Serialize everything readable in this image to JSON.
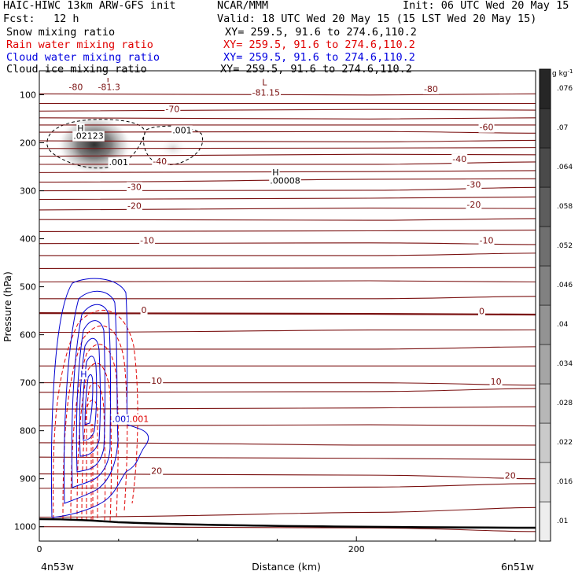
{
  "header": {
    "model": "HAIC-HIWC 13km ARW-GFS init",
    "org": "NCAR/MMM",
    "init": "Init: 06 UTC Wed 20 May 15",
    "fcst_label": "Fcst:",
    "fcst_value": "12 h",
    "valid": "Valid: 18 UTC Wed 20 May 15 (15 LST Wed 20 May 15)"
  },
  "fields": [
    {
      "name": "Snow mixing ratio",
      "xy": "XY= 259.5, 91.6 to 274.6,110.2",
      "color": "#000000"
    },
    {
      "name": "Rain water mixing ratio",
      "xy": "XY= 259.5, 91.6 to 274.6,110.2",
      "color": "#e00000"
    },
    {
      "name": "Cloud water mixing ratio",
      "xy": "XY= 259.5, 91.6 to 274.6,110.2",
      "color": "#0000e0"
    },
    {
      "name": "Cloud ice mixing ratio",
      "xy": "XY= 259.5, 91.6 to 274.6,110.2",
      "color": "#000000"
    }
  ],
  "chart_data": {
    "type": "contour cross-section",
    "xlabel": "Distance (km)",
    "ylabel": "Pressure (hPa)",
    "xlim": [
      0,
      313
    ],
    "ylim": [
      1030,
      50
    ],
    "x_ticks": [
      0,
      200
    ],
    "y_ticks": [
      100,
      200,
      300,
      400,
      500,
      600,
      700,
      800,
      900,
      1000
    ],
    "endpoint_left": "4n53w",
    "endpoint_right": "6n51w",
    "colorbar": {
      "unit": "g kg⁻¹",
      "values": [
        ".01",
        ".016",
        ".022",
        ".028",
        ".034",
        ".04",
        ".046",
        ".052",
        ".058",
        ".064",
        ".07",
        ".076"
      ]
    },
    "temperature_contours": [
      {
        "p_left": 1000,
        "p_right": 1010,
        "label": ""
      },
      {
        "p_left": 980,
        "p_right": 960,
        "label": ""
      },
      {
        "p_left": 920,
        "p_right": 910,
        "label": ""
      },
      {
        "p_left": 890,
        "p_right": 900,
        "label": "20"
      },
      {
        "p_left": 855,
        "p_right": 860,
        "label": ""
      },
      {
        "p_left": 825,
        "p_right": 830,
        "label": ""
      },
      {
        "p_left": 790,
        "p_right": 790,
        "label": ""
      },
      {
        "p_left": 755,
        "p_right": 750,
        "label": ""
      },
      {
        "p_left": 720,
        "p_right": 712,
        "label": ""
      },
      {
        "p_left": 700,
        "p_right": 705,
        "label": "10"
      },
      {
        "p_left": 665,
        "p_right": 665,
        "label": ""
      },
      {
        "p_left": 630,
        "p_right": 625,
        "label": ""
      },
      {
        "p_left": 595,
        "p_right": 590,
        "label": ""
      },
      {
        "p_left": 555,
        "p_right": 558,
        "label": "0"
      },
      {
        "p_left": 525,
        "p_right": 520,
        "label": ""
      },
      {
        "p_left": 490,
        "p_right": 490,
        "label": ""
      },
      {
        "p_left": 462,
        "p_right": 460,
        "label": ""
      },
      {
        "p_left": 435,
        "p_right": 430,
        "label": ""
      },
      {
        "p_left": 410,
        "p_right": 412,
        "label": "-10"
      },
      {
        "p_left": 385,
        "p_right": 382,
        "label": ""
      },
      {
        "p_left": 360,
        "p_right": 358,
        "label": ""
      },
      {
        "p_left": 340,
        "p_right": 337,
        "label": "-20"
      },
      {
        "p_left": 318,
        "p_right": 313,
        "label": ""
      },
      {
        "p_left": 300,
        "p_right": 293,
        "label": "-30"
      },
      {
        "p_left": 282,
        "p_right": 275,
        "label": ""
      },
      {
        "p_left": 262,
        "p_right": 258,
        "label": ""
      },
      {
        "p_left": 245,
        "p_right": 240,
        "label": "-40"
      },
      {
        "p_left": 228,
        "p_right": 225,
        "label": ""
      },
      {
        "p_left": 212,
        "p_right": 210,
        "label": ""
      },
      {
        "p_left": 196,
        "p_right": 195,
        "label": ""
      },
      {
        "p_left": 178,
        "p_right": 180,
        "label": "-60"
      },
      {
        "p_left": 163,
        "p_right": 163,
        "label": ""
      },
      {
        "p_left": 148,
        "p_right": 148,
        "label": "-70"
      },
      {
        "p_left": 134,
        "p_right": 132,
        "label": ""
      },
      {
        "p_left": 118,
        "p_right": 118,
        "label": ""
      },
      {
        "p_left": 98,
        "p_right": 98,
        "label": "-80"
      }
    ],
    "annotations": [
      {
        "text": "L",
        "x": 44,
        "p": 78,
        "color": "#7a1010"
      },
      {
        "text": "-80",
        "x": 23,
        "p": 90,
        "color": "#7a1010"
      },
      {
        "text": "-81.3",
        "x": 44,
        "p": 90,
        "color": "#7a1010"
      },
      {
        "text": "L",
        "x": 142,
        "p": 80,
        "color": "#7a1010"
      },
      {
        "text": "-81.15",
        "x": 143,
        "p": 102,
        "color": "#7a1010"
      },
      {
        "text": "-80",
        "x": 247,
        "p": 94,
        "color": "#7a1010"
      },
      {
        "text": "-70",
        "x": 84,
        "p": 136,
        "color": "#7a1010"
      },
      {
        "text": "-60",
        "x": 282,
        "p": 174,
        "color": "#7a1010"
      },
      {
        "text": "-40",
        "x": 76,
        "p": 245,
        "color": "#7a1010"
      },
      {
        "text": "-40",
        "x": 265,
        "p": 240,
        "color": "#7a1010"
      },
      {
        "text": "-30",
        "x": 60,
        "p": 298,
        "color": "#7a1010"
      },
      {
        "text": "-30",
        "x": 274,
        "p": 293,
        "color": "#7a1010"
      },
      {
        "text": "-20",
        "x": 60,
        "p": 338,
        "color": "#7a1010"
      },
      {
        "text": "-20",
        "x": 274,
        "p": 335,
        "color": "#7a1010"
      },
      {
        "text": "-10",
        "x": 68,
        "p": 410,
        "color": "#7a1010"
      },
      {
        "text": "-10",
        "x": 282,
        "p": 410,
        "color": "#7a1010"
      },
      {
        "text": "0",
        "x": 66,
        "p": 555,
        "color": "#7a1010"
      },
      {
        "text": "0",
        "x": 279,
        "p": 557,
        "color": "#7a1010"
      },
      {
        "text": "10",
        "x": 74,
        "p": 702,
        "color": "#7a1010"
      },
      {
        "text": "10",
        "x": 288,
        "p": 704,
        "color": "#7a1010"
      },
      {
        "text": "20",
        "x": 74,
        "p": 890,
        "color": "#7a1010"
      },
      {
        "text": "20",
        "x": 297,
        "p": 900,
        "color": "#7a1010"
      },
      {
        "text": "H",
        "x": 26,
        "p": 176,
        "color": "#000000"
      },
      {
        "text": ".02123",
        "x": 31,
        "p": 192,
        "color": "#000000"
      },
      {
        "text": ".001",
        "x": 50,
        "p": 247,
        "color": "#000000"
      },
      {
        "text": ".001",
        "x": 90,
        "p": 180,
        "color": "#000000"
      },
      {
        "text": "H",
        "x": 149,
        "p": 268,
        "color": "#000000"
      },
      {
        "text": ".00008",
        "x": 155,
        "p": 285,
        "color": "#000000"
      },
      {
        "text": "H",
        "x": 28,
        "p": 688,
        "color": "#0000d0"
      },
      {
        "text": ".001",
        "x": 52,
        "p": 782,
        "color": "#0000d0"
      },
      {
        "text": ".001",
        "x": 63,
        "p": 782,
        "color": "#e00000"
      }
    ]
  }
}
